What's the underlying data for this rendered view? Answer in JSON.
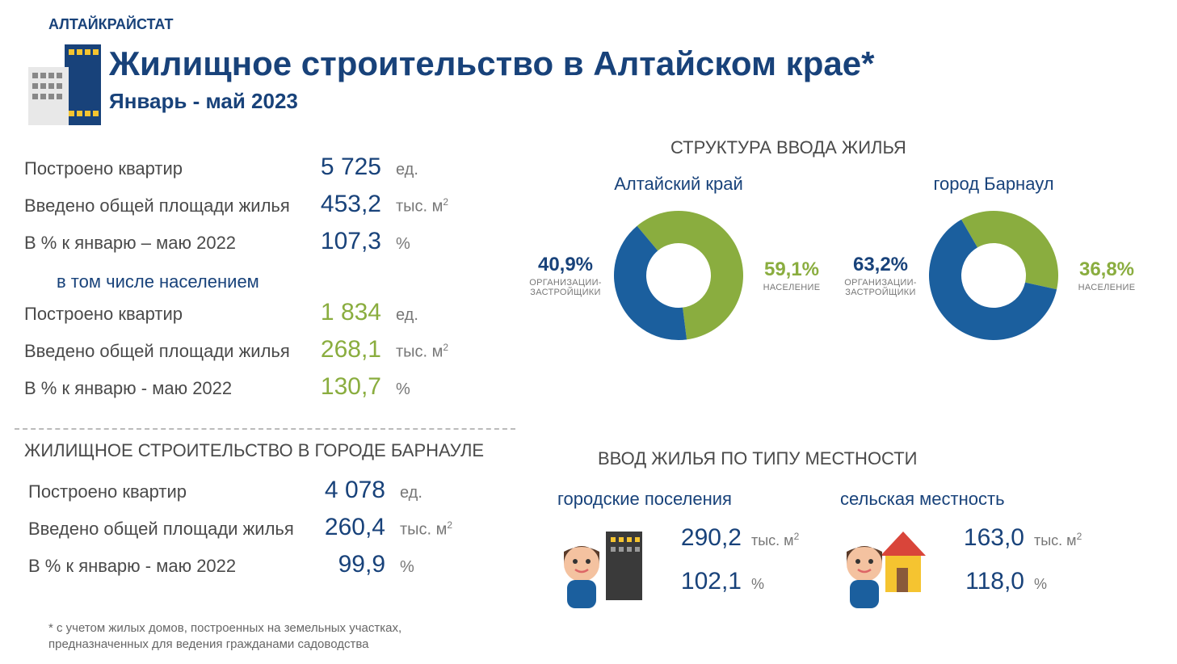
{
  "org": "АЛТАЙКРАЙСТАТ",
  "title": "Жилищное строительство в Алтайском крае*",
  "subtitle": "Январь - май 2023",
  "colors": {
    "primary": "#18427a",
    "accent_blue": "#1b5f9e",
    "accent_green": "#8aad3f",
    "text": "#4a4a4a",
    "muted": "#777777",
    "yellow": "#f5c430"
  },
  "stats_total": {
    "r1": {
      "label": "Построено квартир",
      "value": "5 725",
      "unit": "ед."
    },
    "r2": {
      "label": "Введено общей площади жилья",
      "value": "453,2",
      "unit": "тыс. м",
      "sup": "2"
    },
    "r3": {
      "label": "В % к январю – маю 2022",
      "value": "107,3",
      "unit": "%"
    },
    "sub": "в том числе населением",
    "r4": {
      "label": "Построено квартир",
      "value": "1 834",
      "unit": "ед."
    },
    "r5": {
      "label": "Введено общей площади жилья",
      "value": "268,1",
      "unit": "тыс. м",
      "sup": "2"
    },
    "r6": {
      "label": "В % к январю - маю 2022",
      "value": "130,7",
      "unit": "%"
    }
  },
  "barnaul_title": "ЖИЛИЩНОЕ СТРОИТЕЛЬСТВО В ГОРОДЕ БАРНАУЛЕ",
  "barnaul": {
    "r1": {
      "label": "Построено квартир",
      "value": "4 078",
      "unit": "ед."
    },
    "r2": {
      "label": "Введено общей площади жилья",
      "value": "260,4",
      "unit": "тыс. м",
      "sup": "2"
    },
    "r3": {
      "label": "В % к январю - маю 2022",
      "value": "99,9",
      "unit": "%"
    }
  },
  "struct_title": "СТРУКТУРА ВВОДА ЖИЛЬЯ",
  "donut1": {
    "title": "Алтайский край",
    "left_pct": "40,9%",
    "left_lbl": "ОРГАНИЗАЦИИ-ЗАСТРОЙЩИКИ",
    "right_pct": "59,1%",
    "right_lbl": "НАСЕЛЕНИЕ",
    "slice_green": 59.1,
    "slice_blue": 40.9,
    "color_green": "#8aad3f",
    "color_blue": "#1b5f9e",
    "outer_r": 80,
    "inner_r": 40,
    "rotation_start": -40
  },
  "donut2": {
    "title": "город Барнаул",
    "left_pct": "63,2%",
    "left_lbl": "ОРГАНИЗАЦИИ-ЗАСТРОЙЩИКИ",
    "right_pct": "36,8%",
    "right_lbl": "НАСЕЛЕНИЕ",
    "slice_green": 36.8,
    "slice_blue": 63.2,
    "color_green": "#8aad3f",
    "color_blue": "#1b5f9e",
    "outer_r": 80,
    "inner_r": 40,
    "rotation_start": -30
  },
  "locality_title": "ВВОД ЖИЛЬЯ ПО ТИПУ МЕСТНОСТИ",
  "loc_urban": {
    "title": "городские поселения",
    "v1": "290,2",
    "u1": "тыс. м",
    "sup": "2",
    "v2": "102,1",
    "u2": "%"
  },
  "loc_rural": {
    "title": "сельская местность",
    "v1": "163,0",
    "u1": "тыс. м",
    "sup": "2",
    "v2": "118,0",
    "u2": "%"
  },
  "footnote": "* с учетом жилых домов, построенных на земельных участках, предназначенных для ведения гражданами садоводства"
}
